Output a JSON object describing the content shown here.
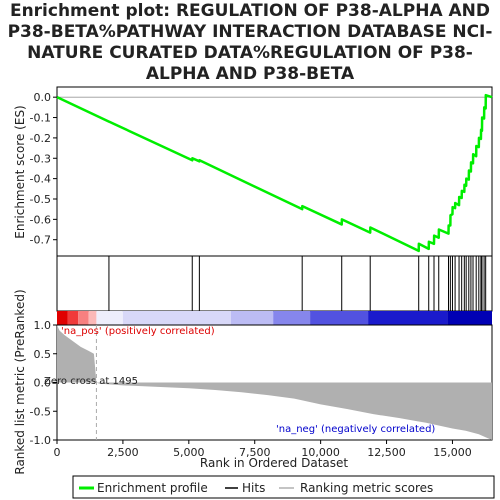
{
  "chart_data": {
    "type": "line",
    "title_lines": [
      "Enrichment plot: REGULATION OF P38-ALPHA AND",
      "P38-BETA%PATHWAY INTERACTION DATABASE NCI-",
      "NATURE CURATED DATA%REGULATION OF P38-",
      "ALPHA AND P38-BETA"
    ],
    "xlabel": "Rank in Ordered Dataset",
    "ylabel_top": "Enrichment score (ES)",
    "ylabel_bottom": "Ranked list metric (PreRanked)",
    "xlim": [
      0,
      16500
    ],
    "x_ticks": [
      0,
      2500,
      5000,
      7500,
      10000,
      12500,
      15000
    ],
    "x_tick_labels": [
      "0",
      "2,500",
      "5,000",
      "7,500",
      "10,000",
      "12,500",
      "15,000"
    ],
    "es_ylim": [
      -0.78,
      0.05
    ],
    "es_ticks": [
      0.0,
      -0.1,
      -0.2,
      -0.3,
      -0.4,
      -0.5,
      -0.6,
      -0.7
    ],
    "es_tick_labels": [
      "0.0",
      "-0.1",
      "-0.2",
      "-0.3",
      "-0.4",
      "-0.5",
      "-0.6",
      "-0.7"
    ],
    "metric_ylim": [
      -1.0,
      1.0
    ],
    "metric_ticks": [
      1.0,
      0.5,
      0.0,
      -0.5,
      -1.0
    ],
    "metric_tick_labels": [
      "1.0",
      "0.5",
      "0.0",
      "-0.5",
      "-1.0"
    ],
    "hits": [
      1970,
      5130,
      5400,
      9300,
      10800,
      11880,
      13720,
      14100,
      14300,
      14480,
      14850,
      14920,
      15000,
      15100,
      15250,
      15350,
      15450,
      15520,
      15620,
      15700,
      15780,
      15900,
      16000,
      16080,
      16120,
      16200,
      16260
    ],
    "es_curve": {
      "x": [
        0,
        1970,
        1975,
        5130,
        5135,
        5400,
        5405,
        9300,
        9305,
        10800,
        10805,
        11880,
        11885,
        13720,
        13725,
        14100,
        14105,
        14300,
        14305,
        14480,
        14485,
        14850,
        14855,
        14920,
        14925,
        15000,
        15005,
        15100,
        15105,
        15250,
        15255,
        15350,
        15355,
        15450,
        15455,
        15520,
        15525,
        15620,
        15625,
        15700,
        15705,
        15780,
        15785,
        15900,
        15905,
        16000,
        16005,
        16080,
        16085,
        16120,
        16125,
        16200,
        16205,
        16260,
        16265,
        16500
      ],
      "y": [
        0.0,
        -0.12,
        -0.12,
        -0.31,
        -0.3,
        -0.315,
        -0.31,
        -0.55,
        -0.535,
        -0.625,
        -0.6,
        -0.665,
        -0.64,
        -0.755,
        -0.72,
        -0.745,
        -0.71,
        -0.72,
        -0.68,
        -0.69,
        -0.65,
        -0.67,
        -0.63,
        -0.63,
        -0.58,
        -0.575,
        -0.54,
        -0.545,
        -0.52,
        -0.53,
        -0.49,
        -0.495,
        -0.46,
        -0.465,
        -0.43,
        -0.435,
        -0.4,
        -0.405,
        -0.36,
        -0.365,
        -0.32,
        -0.325,
        -0.28,
        -0.29,
        -0.24,
        -0.245,
        -0.2,
        -0.205,
        -0.16,
        -0.165,
        -0.1,
        -0.105,
        -0.05,
        -0.055,
        0.01,
        0.0
      ]
    },
    "metric_curve": {
      "x": [
        0,
        100,
        300,
        600,
        900,
        1200,
        1400,
        1495,
        1600,
        2500,
        3500,
        5000,
        6000,
        7000,
        8000,
        9000,
        10000,
        11000,
        12000,
        13000,
        13500,
        14000,
        14500,
        15000,
        15500,
        16000,
        16300,
        16500
      ],
      "y": [
        1.0,
        0.9,
        0.82,
        0.72,
        0.62,
        0.55,
        0.5,
        0.0,
        -0.02,
        -0.05,
        -0.07,
        -0.1,
        -0.13,
        -0.17,
        -0.22,
        -0.28,
        -0.38,
        -0.46,
        -0.55,
        -0.62,
        -0.66,
        -0.7,
        -0.75,
        -0.8,
        -0.84,
        -0.9,
        -0.96,
        -1.0
      ]
    },
    "zero_cross_rank": 1495,
    "zero_cross_label": "Zero cross at 1495",
    "annotation_pos": "'na_pos' (positively correlated)",
    "annotation_neg": "'na_neg' (negatively correlated)",
    "legend_items": [
      "Enrichment profile",
      "Hits",
      "Ranking metric scores"
    ],
    "colors": {
      "es_line": "#00ee00",
      "hits": "#000000",
      "metric_fill": "#b0b0b0",
      "pos_text": "#dd0000",
      "neg_text": "#0000cc",
      "zero_line": "#aaaaaa",
      "axis": "#000000",
      "heatmap_segments": [
        {
          "from": 0,
          "to": 400,
          "color": "#e00000"
        },
        {
          "from": 400,
          "to": 800,
          "color": "#f03a3a"
        },
        {
          "from": 800,
          "to": 1200,
          "color": "#f78080"
        },
        {
          "from": 1200,
          "to": 1495,
          "color": "#fbb8b8"
        },
        {
          "from": 1495,
          "to": 2500,
          "color": "#eeeefc"
        },
        {
          "from": 2500,
          "to": 6600,
          "color": "#d8d8f8"
        },
        {
          "from": 6600,
          "to": 8200,
          "color": "#bcbcf4"
        },
        {
          "from": 8200,
          "to": 9600,
          "color": "#8686ec"
        },
        {
          "from": 9600,
          "to": 11800,
          "color": "#5252e0"
        },
        {
          "from": 11800,
          "to": 14800,
          "color": "#1a1acc"
        },
        {
          "from": 14800,
          "to": 16500,
          "color": "#0000b4"
        }
      ]
    }
  }
}
